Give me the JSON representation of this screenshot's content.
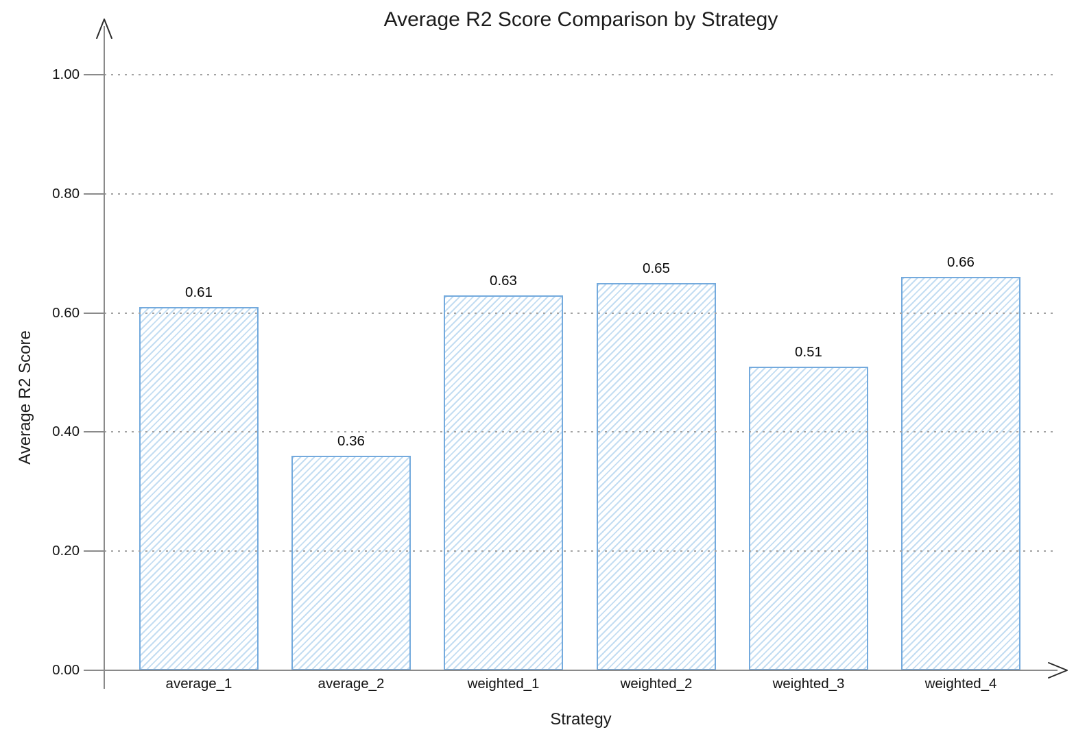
{
  "chart_data": {
    "type": "bar",
    "title": "Average R2 Score Comparison by Strategy",
    "xlabel": "Strategy",
    "ylabel": "Average R2 Score",
    "categories": [
      "average_1",
      "average_2",
      "weighted_1",
      "weighted_2",
      "weighted_3",
      "weighted_4"
    ],
    "values": [
      0.61,
      0.36,
      0.63,
      0.65,
      0.51,
      0.66
    ],
    "value_labels": [
      "0.61",
      "0.36",
      "0.63",
      "0.65",
      "0.51",
      "0.66"
    ],
    "y_ticks": [
      "0.00",
      "0.20",
      "0.40",
      "0.60",
      "0.80",
      "1.00"
    ],
    "y_tick_values": [
      0,
      0.2,
      0.4,
      0.6,
      0.8,
      1.0
    ],
    "ylim": [
      0,
      1.05
    ],
    "grid": "horizontal-dotted",
    "legend": "none",
    "colors": {
      "bar_border": "#74aadd",
      "bar_hatch": "#c3ddf2",
      "bar_fill_bg": "#ffffff",
      "axis": "#8a8a8a",
      "grid": "#a3a3a3",
      "text": "#1c1c1c"
    }
  }
}
